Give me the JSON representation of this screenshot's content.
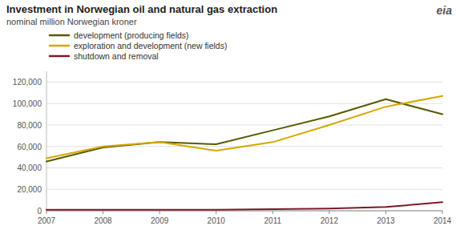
{
  "chart_data": {
    "type": "line",
    "title": "Investment in Norwegian oil and natural gas extraction",
    "subtitle": "nominal  million Norwegian  kroner",
    "annotations": [
      "eia"
    ],
    "x": [
      2007,
      2008,
      2009,
      2010,
      2011,
      2012,
      2013,
      2014
    ],
    "xlim": [
      2007,
      2014
    ],
    "xticks": [
      2007,
      2008,
      2009,
      2010,
      2011,
      2012,
      2013,
      2014
    ],
    "ylim": [
      0,
      130000
    ],
    "yticks": [
      0,
      {
        "value": 20000,
        "label": "20,000"
      },
      {
        "value": 40000,
        "label": "40,000"
      },
      {
        "value": 60000,
        "label": "60,000"
      },
      {
        "value": 80000,
        "label": "80,000"
      },
      {
        "value": 100000,
        "label": "100,000"
      },
      {
        "value": 120000,
        "label": "120,000"
      }
    ],
    "grid": true,
    "legend": "upper left",
    "series": [
      {
        "name": "development (producing fields)",
        "color": "#5a5a00",
        "values": [
          46000,
          59000,
          64000,
          62000,
          75000,
          88000,
          104000,
          90000
        ]
      },
      {
        "name": "exploration and development (new fields)",
        "color": "#d4a800",
        "values": [
          49000,
          60000,
          64000,
          56000,
          64000,
          80000,
          97000,
          107000
        ]
      },
      {
        "name": "shutdown and removal",
        "color": "#7a1a2a",
        "values": [
          1000,
          1000,
          1000,
          1000,
          1500,
          2000,
          3500,
          8000
        ]
      }
    ]
  }
}
